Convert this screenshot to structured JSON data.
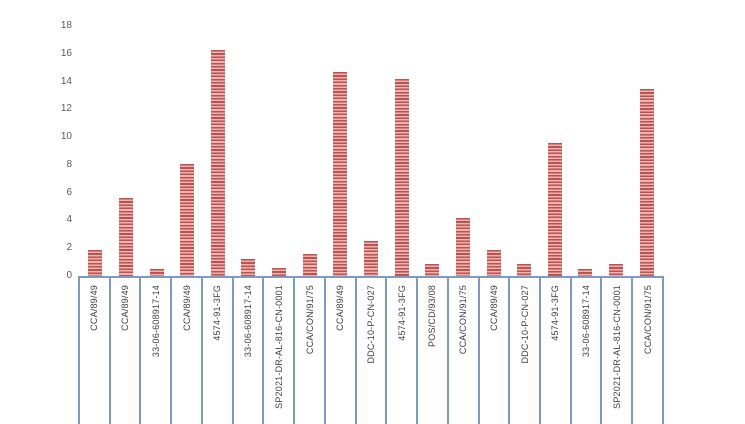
{
  "chart_data": {
    "type": "bar",
    "title": "",
    "xlabel": "",
    "ylabel": "",
    "categories": [
      "CCA/89/49",
      "CCA/89/49",
      "33-06-608917-14",
      "CCA/89/49",
      "4574-91-3FG",
      "33-06-608917-14",
      "SP2021-DR-AL-816-CN-0001",
      "CCA/CON/91/75",
      "CCA/89/49",
      "DDC-10-P-CN-027",
      "4574-91-3FG",
      "POS/CD/93/08",
      "CCA/CON/91/75",
      "CCA/89/49",
      "DDC-10-P-CN-027",
      "4574-91-3FG",
      "33-06-608917-14",
      "SP2021-DR-AL-816-CN-0001",
      "CCA/CON/91/75"
    ],
    "values": [
      1.9,
      5.6,
      0.5,
      8.1,
      16.3,
      1.2,
      0.6,
      1.6,
      14.7,
      2.5,
      14.2,
      0.9,
      4.2,
      1.9,
      0.9,
      9.6,
      0.5,
      0.9,
      13.5
    ],
    "ylim": [
      0,
      18
    ],
    "y_ticks": [
      18,
      16,
      14,
      12,
      10,
      8,
      6,
      4,
      2,
      0
    ],
    "grid": false,
    "legend": false,
    "bar_pattern": "horizontal-stripes",
    "colors": {
      "bar_stripe_dark": "#bf514e",
      "bar_stripe_light": "#e9b4b2",
      "axis_border": "#7b9cc0",
      "ytick_label": "#595959",
      "category_label": "#404040",
      "background": "#ffffff"
    }
  }
}
